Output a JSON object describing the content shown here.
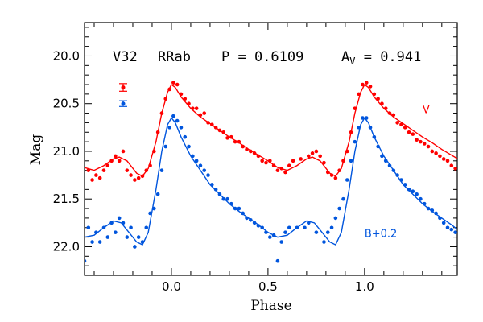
{
  "chart_data": {
    "type": "scatter",
    "xlabel": "Phase",
    "ylabel": "Mag",
    "xlim": [
      -0.45,
      1.48
    ],
    "ylim": [
      22.3,
      19.65
    ],
    "y_inverted": true,
    "x_ticks": [
      0.0,
      0.5,
      1.0
    ],
    "x_tick_labels": [
      "0.0",
      "0.5",
      "1.0"
    ],
    "y_ticks": [
      20.0,
      20.5,
      21.0,
      21.5,
      22.0
    ],
    "y_tick_labels": [
      "20.0",
      "20.5",
      "21.0",
      "21.5",
      "22.0"
    ],
    "x_minor_step": 0.1,
    "y_minor_step": 0.1,
    "header": {
      "star": "V32",
      "type": "RRab",
      "period": "P = 0.6109",
      "amp_base": "A",
      "amp_sub": "V",
      "amp_value": " = 0.941"
    },
    "errorbars": [
      {
        "series": "V",
        "y": 20.33,
        "err": 0.04
      },
      {
        "series": "B+0.2",
        "y": 20.5,
        "err": 0.03
      }
    ],
    "series": [
      {
        "name": "V",
        "label": "V",
        "label_pos": [
          1.3,
          20.6
        ],
        "color": "#ff0000",
        "curve": [
          [
            0.0,
            20.3
          ],
          [
            0.02,
            20.33
          ],
          [
            0.05,
            20.43
          ],
          [
            0.1,
            20.55
          ],
          [
            0.15,
            20.64
          ],
          [
            0.2,
            20.71
          ],
          [
            0.25,
            20.78
          ],
          [
            0.3,
            20.85
          ],
          [
            0.35,
            20.91
          ],
          [
            0.4,
            20.98
          ],
          [
            0.45,
            21.04
          ],
          [
            0.5,
            21.1
          ],
          [
            0.55,
            21.17
          ],
          [
            0.6,
            21.2
          ],
          [
            0.65,
            21.15
          ],
          [
            0.7,
            21.08
          ],
          [
            0.73,
            21.06
          ],
          [
            0.77,
            21.1
          ],
          [
            0.82,
            21.23
          ],
          [
            0.85,
            21.26
          ],
          [
            0.88,
            21.18
          ],
          [
            0.92,
            20.9
          ],
          [
            0.95,
            20.6
          ],
          [
            0.98,
            20.38
          ],
          [
            1.0,
            20.3
          ]
        ],
        "points": [
          [
            -0.43,
            21.2
          ],
          [
            -0.41,
            21.3
          ],
          [
            -0.39,
            21.25
          ],
          [
            -0.37,
            21.28
          ],
          [
            -0.35,
            21.2
          ],
          [
            -0.33,
            21.15
          ],
          [
            -0.31,
            21.1
          ],
          [
            -0.29,
            21.05
          ],
          [
            -0.27,
            21.1
          ],
          [
            -0.25,
            21.0
          ],
          [
            -0.23,
            21.2
          ],
          [
            -0.21,
            21.25
          ],
          [
            -0.19,
            21.3
          ],
          [
            -0.17,
            21.28
          ],
          [
            -0.15,
            21.26
          ],
          [
            -0.13,
            21.2
          ],
          [
            -0.11,
            21.15
          ],
          [
            -0.09,
            21.0
          ],
          [
            -0.07,
            20.8
          ],
          [
            -0.05,
            20.6
          ],
          [
            -0.03,
            20.45
          ],
          [
            -0.01,
            20.35
          ],
          [
            0.01,
            20.28
          ],
          [
            0.03,
            20.3
          ],
          [
            0.05,
            20.4
          ],
          [
            0.07,
            20.45
          ],
          [
            0.09,
            20.5
          ],
          [
            0.11,
            20.55
          ],
          [
            0.13,
            20.55
          ],
          [
            0.15,
            20.62
          ],
          [
            0.17,
            20.6
          ],
          [
            0.19,
            20.7
          ],
          [
            0.21,
            20.72
          ],
          [
            0.23,
            20.75
          ],
          [
            0.25,
            20.78
          ],
          [
            0.27,
            20.8
          ],
          [
            0.29,
            20.86
          ],
          [
            0.31,
            20.85
          ],
          [
            0.33,
            20.9
          ],
          [
            0.35,
            20.9
          ],
          [
            0.37,
            20.95
          ],
          [
            0.39,
            20.98
          ],
          [
            0.41,
            21.0
          ],
          [
            0.43,
            21.02
          ],
          [
            0.45,
            21.05
          ],
          [
            0.47,
            21.1
          ],
          [
            0.49,
            21.12
          ],
          [
            0.51,
            21.1
          ],
          [
            0.53,
            21.15
          ],
          [
            0.55,
            21.2
          ],
          [
            0.57,
            21.18
          ],
          [
            0.59,
            21.22
          ],
          [
            0.61,
            21.15
          ],
          [
            0.63,
            21.1
          ],
          [
            0.67,
            21.08
          ],
          [
            0.71,
            21.05
          ],
          [
            0.73,
            21.02
          ],
          [
            0.75,
            21.0
          ],
          [
            0.77,
            21.05
          ],
          [
            0.79,
            21.12
          ],
          [
            0.81,
            21.22
          ],
          [
            0.83,
            21.25
          ],
          [
            0.85,
            21.28
          ],
          [
            0.87,
            21.2
          ],
          [
            0.89,
            21.1
          ],
          [
            0.91,
            21.0
          ],
          [
            0.93,
            20.8
          ],
          [
            0.95,
            20.55
          ],
          [
            0.97,
            20.4
          ],
          [
            0.99,
            20.3
          ],
          [
            1.01,
            20.28
          ],
          [
            1.03,
            20.32
          ],
          [
            1.05,
            20.4
          ],
          [
            1.07,
            20.45
          ],
          [
            1.09,
            20.5
          ],
          [
            1.11,
            20.55
          ],
          [
            1.13,
            20.6
          ],
          [
            1.15,
            20.62
          ],
          [
            1.17,
            20.7
          ],
          [
            1.19,
            20.72
          ],
          [
            1.21,
            20.75
          ],
          [
            1.23,
            20.8
          ],
          [
            1.25,
            20.82
          ],
          [
            1.27,
            20.88
          ],
          [
            1.29,
            20.9
          ],
          [
            1.31,
            20.92
          ],
          [
            1.33,
            20.95
          ],
          [
            1.35,
            21.0
          ],
          [
            1.37,
            21.02
          ],
          [
            1.39,
            21.05
          ],
          [
            1.41,
            21.08
          ],
          [
            1.43,
            21.1
          ],
          [
            1.45,
            21.15
          ],
          [
            1.47,
            21.18
          ]
        ]
      },
      {
        "name": "B+0.2",
        "label": "B+0.2",
        "label_pos": [
          1.0,
          21.9
        ],
        "color": "#0055dd",
        "curve": [
          [
            0.0,
            20.65
          ],
          [
            0.02,
            20.7
          ],
          [
            0.05,
            20.85
          ],
          [
            0.1,
            21.05
          ],
          [
            0.15,
            21.2
          ],
          [
            0.2,
            21.35
          ],
          [
            0.25,
            21.45
          ],
          [
            0.3,
            21.55
          ],
          [
            0.35,
            21.63
          ],
          [
            0.4,
            21.7
          ],
          [
            0.45,
            21.77
          ],
          [
            0.5,
            21.85
          ],
          [
            0.55,
            21.9
          ],
          [
            0.6,
            21.88
          ],
          [
            0.65,
            21.8
          ],
          [
            0.7,
            21.73
          ],
          [
            0.74,
            21.75
          ],
          [
            0.78,
            21.85
          ],
          [
            0.82,
            21.95
          ],
          [
            0.85,
            21.98
          ],
          [
            0.88,
            21.85
          ],
          [
            0.92,
            21.4
          ],
          [
            0.95,
            21.0
          ],
          [
            0.98,
            20.72
          ],
          [
            1.0,
            20.65
          ]
        ],
        "points": [
          [
            -0.45,
            22.15
          ],
          [
            -0.43,
            21.8
          ],
          [
            -0.41,
            21.95
          ],
          [
            -0.39,
            21.85
          ],
          [
            -0.37,
            21.95
          ],
          [
            -0.35,
            21.8
          ],
          [
            -0.33,
            21.9
          ],
          [
            -0.31,
            21.75
          ],
          [
            -0.29,
            21.85
          ],
          [
            -0.27,
            21.7
          ],
          [
            -0.25,
            21.75
          ],
          [
            -0.23,
            21.9
          ],
          [
            -0.21,
            21.8
          ],
          [
            -0.19,
            22.0
          ],
          [
            -0.17,
            21.9
          ],
          [
            -0.15,
            21.95
          ],
          [
            -0.13,
            21.8
          ],
          [
            -0.11,
            21.65
          ],
          [
            -0.09,
            21.6
          ],
          [
            -0.07,
            21.45
          ],
          [
            -0.05,
            21.2
          ],
          [
            -0.03,
            20.95
          ],
          [
            -0.01,
            20.75
          ],
          [
            0.01,
            20.63
          ],
          [
            0.03,
            20.68
          ],
          [
            0.05,
            20.75
          ],
          [
            0.07,
            20.85
          ],
          [
            0.09,
            20.95
          ],
          [
            0.11,
            21.05
          ],
          [
            0.13,
            21.1
          ],
          [
            0.15,
            21.15
          ],
          [
            0.17,
            21.2
          ],
          [
            0.19,
            21.25
          ],
          [
            0.21,
            21.35
          ],
          [
            0.23,
            21.4
          ],
          [
            0.25,
            21.45
          ],
          [
            0.27,
            21.5
          ],
          [
            0.29,
            21.5
          ],
          [
            0.31,
            21.55
          ],
          [
            0.33,
            21.6
          ],
          [
            0.35,
            21.6
          ],
          [
            0.37,
            21.65
          ],
          [
            0.39,
            21.7
          ],
          [
            0.41,
            21.72
          ],
          [
            0.43,
            21.75
          ],
          [
            0.45,
            21.78
          ],
          [
            0.47,
            21.8
          ],
          [
            0.49,
            21.85
          ],
          [
            0.51,
            21.9
          ],
          [
            0.53,
            21.88
          ],
          [
            0.55,
            22.15
          ],
          [
            0.57,
            21.95
          ],
          [
            0.59,
            21.85
          ],
          [
            0.61,
            21.8
          ],
          [
            0.65,
            21.8
          ],
          [
            0.69,
            21.8
          ],
          [
            0.71,
            21.75
          ],
          [
            0.75,
            21.85
          ],
          [
            0.79,
            21.95
          ],
          [
            0.81,
            21.85
          ],
          [
            0.83,
            21.8
          ],
          [
            0.85,
            21.7
          ],
          [
            0.87,
            21.6
          ],
          [
            0.89,
            21.5
          ],
          [
            0.91,
            21.3
          ],
          [
            0.93,
            21.1
          ],
          [
            0.95,
            20.9
          ],
          [
            0.97,
            20.75
          ],
          [
            0.99,
            20.65
          ],
          [
            1.01,
            20.65
          ],
          [
            1.03,
            20.75
          ],
          [
            1.05,
            20.85
          ],
          [
            1.07,
            20.95
          ],
          [
            1.09,
            21.05
          ],
          [
            1.11,
            21.1
          ],
          [
            1.13,
            21.15
          ],
          [
            1.15,
            21.2
          ],
          [
            1.17,
            21.25
          ],
          [
            1.19,
            21.3
          ],
          [
            1.21,
            21.35
          ],
          [
            1.23,
            21.4
          ],
          [
            1.25,
            21.42
          ],
          [
            1.27,
            21.45
          ],
          [
            1.29,
            21.5
          ],
          [
            1.31,
            21.55
          ],
          [
            1.33,
            21.6
          ],
          [
            1.35,
            21.62
          ],
          [
            1.37,
            21.65
          ],
          [
            1.39,
            21.7
          ],
          [
            1.41,
            21.75
          ],
          [
            1.43,
            21.8
          ],
          [
            1.45,
            21.82
          ],
          [
            1.47,
            21.85
          ]
        ]
      }
    ]
  }
}
